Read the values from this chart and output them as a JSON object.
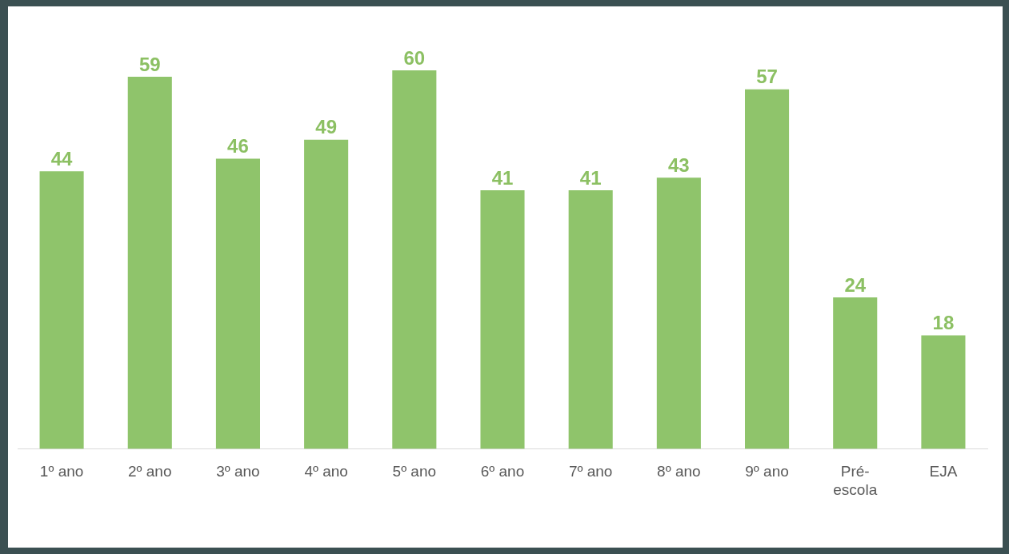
{
  "chart_data": {
    "type": "bar",
    "categories": [
      "1º ano",
      "2º ano",
      "3º ano",
      "4º ano",
      "5º ano",
      "6º ano",
      "7º ano",
      "8º ano",
      "9º ano",
      "Pré-escola",
      "EJA"
    ],
    "values": [
      44,
      59,
      46,
      49,
      60,
      41,
      41,
      43,
      57,
      24,
      18
    ],
    "color": "#8fc46b",
    "data_labels": true,
    "grid": false,
    "legend": false,
    "tick_labels": "x"
  }
}
